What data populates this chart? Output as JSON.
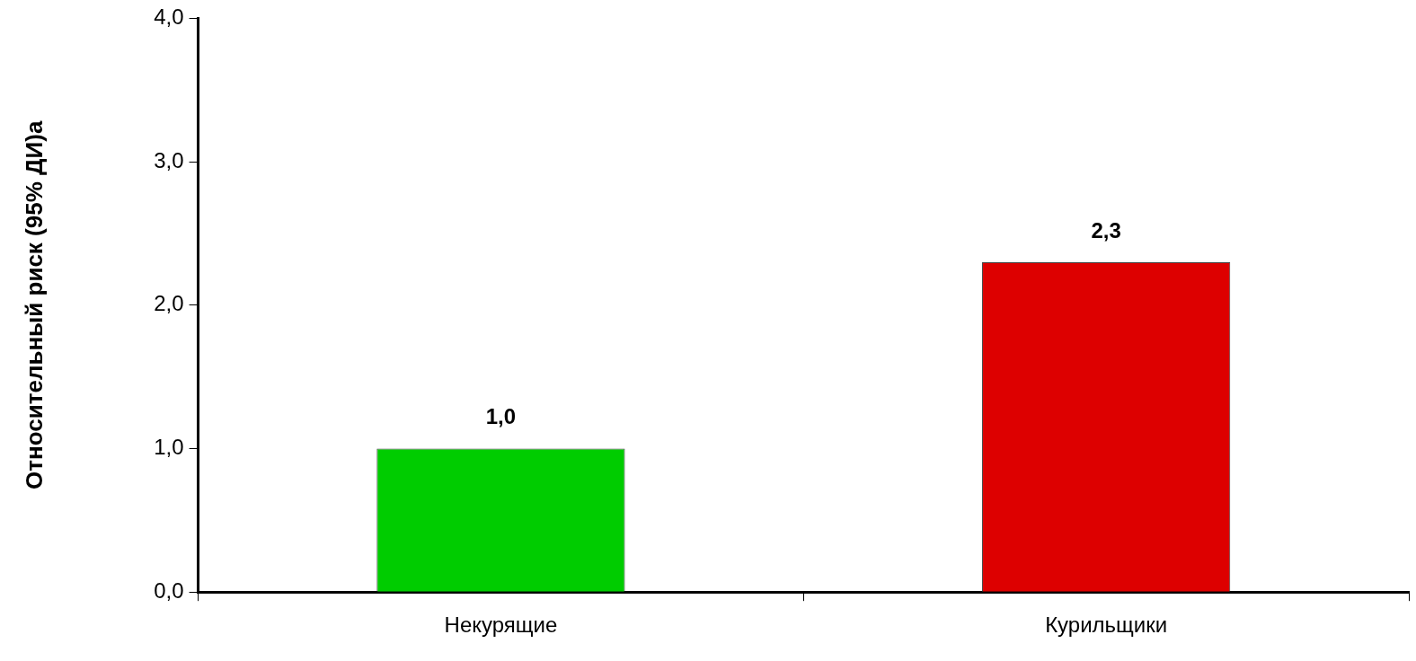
{
  "chart_data": {
    "type": "bar",
    "ylabel": "Относительный риск (95% ДИ)а",
    "categories": [
      "Некурящие",
      "Курильщики"
    ],
    "values": [
      1.0,
      2.3
    ],
    "colors": [
      "#00cc00",
      "#dd0000"
    ],
    "value_labels": [
      "1,0",
      "2,3"
    ],
    "ylim": [
      0,
      4
    ],
    "yticks": [
      {
        "value": 0,
        "label": "0,0"
      },
      {
        "value": 1,
        "label": "1,0"
      },
      {
        "value": 2,
        "label": "2,0"
      },
      {
        "value": 3,
        "label": "3,0"
      },
      {
        "value": 4,
        "label": "4,0"
      }
    ],
    "grid": false,
    "legend": false
  }
}
